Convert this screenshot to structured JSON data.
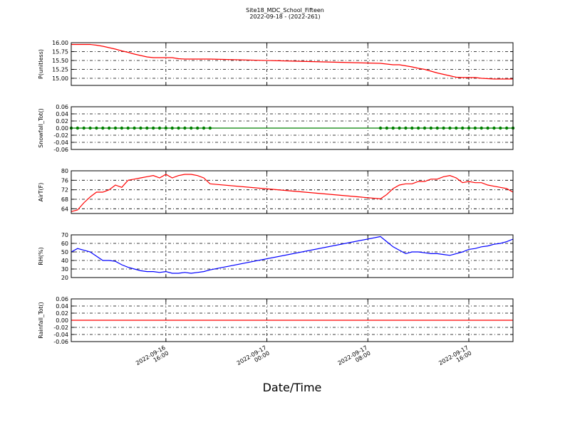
{
  "chart_data": {
    "type": "line",
    "title": "Site18_MDC_School_Fifteen",
    "subtitle": "2022-09-18 - (2022-261)",
    "xlabel": "Date/Time",
    "x": [
      "2022-09-16 08:30",
      "2022-09-16 09:00",
      "2022-09-16 09:30",
      "2022-09-16 10:00",
      "2022-09-16 10:30",
      "2022-09-16 11:00",
      "2022-09-16 11:30",
      "2022-09-16 12:00",
      "2022-09-16 12:30",
      "2022-09-16 13:00",
      "2022-09-16 13:30",
      "2022-09-16 14:00",
      "2022-09-16 14:30",
      "2022-09-16 15:00",
      "2022-09-16 15:30",
      "2022-09-16 16:00",
      "2022-09-16 16:30",
      "2022-09-16 17:00",
      "2022-09-16 17:30",
      "2022-09-16 18:00",
      "2022-09-16 18:30",
      "2022-09-16 19:00",
      "2022-09-16 19:30",
      "2022-09-17 09:00",
      "2022-09-17 09:30",
      "2022-09-17 10:00",
      "2022-09-17 10:30",
      "2022-09-17 11:00",
      "2022-09-17 11:30",
      "2022-09-17 12:00",
      "2022-09-17 12:30",
      "2022-09-17 13:00",
      "2022-09-17 13:30",
      "2022-09-17 14:00",
      "2022-09-17 14:30",
      "2022-09-17 15:00",
      "2022-09-17 15:30",
      "2022-09-17 16:00",
      "2022-09-17 16:30",
      "2022-09-17 17:00",
      "2022-09-17 17:30",
      "2022-09-17 18:00",
      "2022-09-17 18:30",
      "2022-09-17 19:00",
      "2022-09-17 19:30"
    ],
    "xlim": [
      "2022-09-16 08:30",
      "2022-09-17 19:30"
    ],
    "xticks": [
      {
        "value": "2022-09-16 16:00",
        "label": "2022-09-16\n16:00"
      },
      {
        "value": "2022-09-17 00:00",
        "label": "2022-09-17\n00:00"
      },
      {
        "value": "2022-09-17 08:00",
        "label": "2022-09-17\n08:00"
      },
      {
        "value": "2022-09-17 16:00",
        "label": "2022-09-17\n16:00"
      }
    ],
    "grid": true,
    "panels": [
      {
        "ylabel": "P(unitless)",
        "color": "#ff0000",
        "markers": false,
        "ylim": [
          14.8,
          16.0
        ],
        "yticks": [
          {
            "value": 15,
            "label": "15.00"
          },
          {
            "value": 15.25,
            "label": "15.25"
          },
          {
            "value": 15.5,
            "label": "15.50"
          },
          {
            "value": 15.75,
            "label": "15.75"
          },
          {
            "value": 16,
            "label": "16.00"
          }
        ],
        "values": [
          15.95,
          15.95,
          15.95,
          15.95,
          15.93,
          15.9,
          15.86,
          15.82,
          15.77,
          15.73,
          15.68,
          15.64,
          15.6,
          15.58,
          15.58,
          15.58,
          15.58,
          15.55,
          15.54,
          15.54,
          15.54,
          15.54,
          15.54,
          15.42,
          15.4,
          15.38,
          15.38,
          15.35,
          15.32,
          15.28,
          15.25,
          15.2,
          15.15,
          15.11,
          15.07,
          15.03,
          15.02,
          15.02,
          15.02,
          15.0,
          14.99,
          14.98,
          14.98,
          14.98,
          14.98
        ]
      },
      {
        "ylabel": "Snowfall_Tot()",
        "color": "#008000",
        "markers": true,
        "ylim": [
          -0.06,
          0.06
        ],
        "yticks": [
          -0.06,
          -0.04,
          -0.02,
          {
            "value": 0,
            "label": "0.00"
          },
          0.02,
          0.04,
          0.06
        ],
        "values": [
          0,
          0,
          0,
          0,
          0,
          0,
          0,
          0,
          0,
          0,
          0,
          0,
          0,
          0,
          0,
          0,
          0,
          0,
          0,
          0,
          0,
          0,
          0,
          0,
          0,
          0,
          0,
          0,
          0,
          0,
          0,
          0,
          0,
          0,
          0,
          0,
          0,
          0,
          0,
          0,
          0,
          0,
          0,
          0,
          0
        ]
      },
      {
        "ylabel": "AirT(F)",
        "color": "#ff0000",
        "markers": false,
        "ylim": [
          62,
          80
        ],
        "yticks": [
          64,
          68,
          72,
          76,
          80
        ],
        "values": [
          62.8,
          63.5,
          66.5,
          69,
          71,
          71,
          72,
          74,
          73,
          76,
          76.5,
          77,
          77.5,
          78,
          77,
          78.5,
          77,
          78,
          78.5,
          78.5,
          78,
          77,
          74.5,
          68.2,
          70,
          72.5,
          74,
          74.5,
          74.5,
          75.5,
          75.5,
          76.5,
          76.5,
          77.5,
          78,
          77,
          75,
          75.5,
          75,
          75,
          74,
          73.5,
          73,
          72.5,
          71
        ]
      },
      {
        "ylabel": "RH(%)",
        "color": "#0000ff",
        "markers": false,
        "ylim": [
          20,
          70
        ],
        "yticks": [
          20,
          30,
          40,
          50,
          60,
          70
        ],
        "values": [
          50,
          54,
          52,
          50,
          45,
          40,
          40,
          39,
          35,
          32,
          30,
          28,
          27,
          27,
          26,
          27,
          25,
          25,
          26,
          25,
          26,
          27,
          29,
          68,
          62,
          56,
          52,
          48,
          50,
          50,
          49,
          48,
          48,
          47,
          46,
          48,
          50,
          53,
          54,
          56,
          57,
          59,
          60,
          62,
          65
        ]
      },
      {
        "ylabel": "Rainfall_Tot()",
        "color": "#ff0000",
        "markers": false,
        "ylim": [
          -0.06,
          0.06
        ],
        "yticks": [
          -0.06,
          -0.04,
          -0.02,
          {
            "value": 0,
            "label": "0.00"
          },
          0.02,
          0.04,
          0.06
        ],
        "values": [
          0,
          0,
          0,
          0,
          0,
          0,
          0,
          0,
          0,
          0,
          0,
          0,
          0,
          0,
          0,
          0,
          0,
          0,
          0,
          0,
          0,
          0,
          0,
          0,
          0,
          0,
          0,
          0,
          0,
          0,
          0,
          0,
          0,
          0,
          0,
          0,
          0,
          0,
          0,
          0,
          0,
          0,
          0,
          0,
          0
        ]
      }
    ]
  }
}
